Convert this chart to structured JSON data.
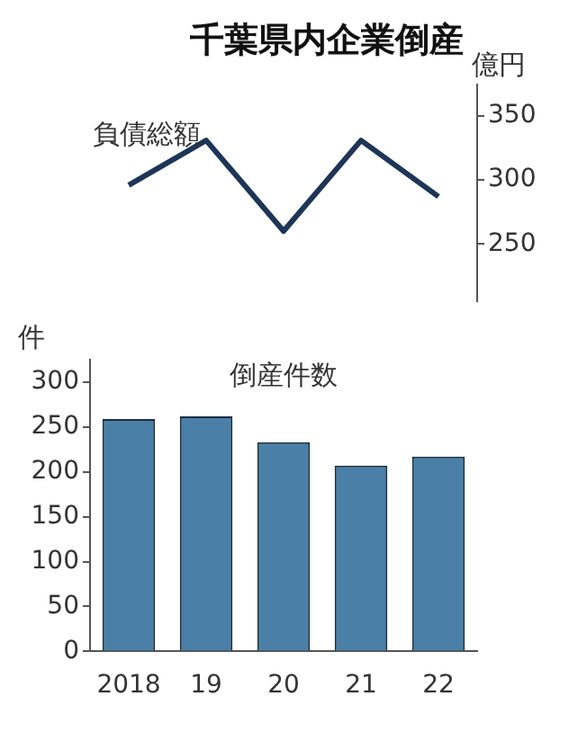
{
  "chart_data": [
    {
      "type": "line",
      "title": "千葉県内企業倒産",
      "ylabel": "億円",
      "categories": [
        "2018",
        "19",
        "20",
        "21",
        "22"
      ],
      "series": [
        {
          "name": "負債総額",
          "color": "#1d3557",
          "values": [
            296,
            331,
            260,
            331,
            287
          ]
        }
      ],
      "ylim": [
        205,
        375
      ],
      "yticks": [
        250,
        300,
        350
      ],
      "grid": false,
      "legend": false,
      "marker": "none",
      "tick_labels": "y"
    },
    {
      "type": "bar",
      "title": "倒産件数",
      "ylabel": "件",
      "categories": [
        "2018",
        "19",
        "20",
        "21",
        "22"
      ],
      "series": [
        {
          "color": "#4a80a8",
          "values": [
            259,
            262,
            233,
            207,
            217
          ]
        }
      ],
      "ylim": [
        0,
        325
      ],
      "yticks": [
        0,
        50,
        100,
        150,
        200,
        250,
        300
      ],
      "grid": false,
      "legend": false
    }
  ]
}
